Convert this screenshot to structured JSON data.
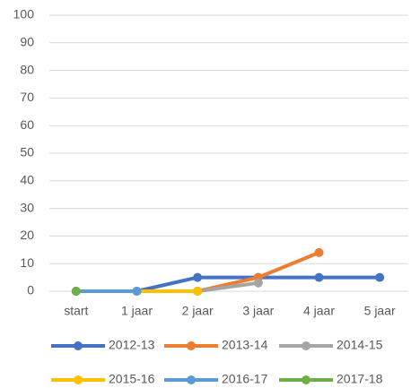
{
  "chart_data": {
    "type": "line",
    "categories": [
      "start",
      "1 jaar",
      "2 jaar",
      "3 jaar",
      "4 jaar",
      "5 jaar"
    ],
    "series": [
      {
        "name": "2012-13",
        "color": "#4472c4",
        "values": [
          0,
          0,
          5,
          5,
          5,
          5
        ]
      },
      {
        "name": "2013-14",
        "color": "#ed7d31",
        "values": [
          0,
          0,
          0,
          5,
          14,
          null
        ]
      },
      {
        "name": "2014-15",
        "color": "#a5a5a5",
        "values": [
          0,
          0,
          0,
          3,
          null,
          null
        ]
      },
      {
        "name": "2015-16",
        "color": "#ffc000",
        "values": [
          0,
          0,
          0,
          null,
          null,
          null
        ]
      },
      {
        "name": "2016-17",
        "color": "#5b9bd5",
        "values": [
          0,
          0,
          null,
          null,
          null,
          null
        ]
      },
      {
        "name": "2017-18",
        "color": "#70ad47",
        "values": [
          0,
          null,
          null,
          null,
          null,
          null
        ]
      }
    ],
    "ylim": [
      0,
      100
    ],
    "yticks": [
      0,
      10,
      20,
      30,
      40,
      50,
      60,
      70,
      80,
      90,
      100
    ],
    "grid": true,
    "legend": "bottom"
  }
}
